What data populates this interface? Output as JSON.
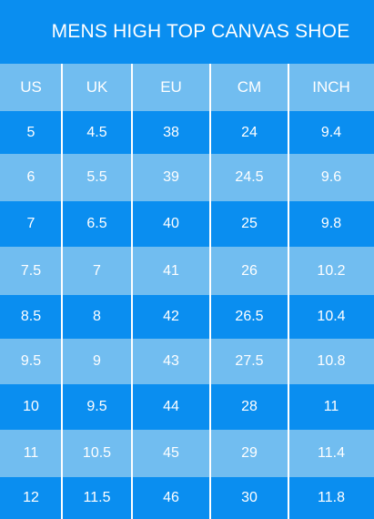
{
  "title": "MENS HIGH TOP CANVAS SHOE",
  "colors": {
    "background_blue": "#0a8ef0",
    "light_row": "#71bdf0",
    "text": "#ffffff",
    "divider": "#ffffff"
  },
  "table": {
    "headers": [
      "US",
      "UK",
      "EU",
      "CM",
      "INCH"
    ],
    "rows": [
      [
        "5",
        "4.5",
        "38",
        "24",
        "9.4"
      ],
      [
        "6",
        "5.5",
        "39",
        "24.5",
        "9.6"
      ],
      [
        "7",
        "6.5",
        "40",
        "25",
        "9.8"
      ],
      [
        "7.5",
        "7",
        "41",
        "26",
        "10.2"
      ],
      [
        "8.5",
        "8",
        "42",
        "26.5",
        "10.4"
      ],
      [
        "9.5",
        "9",
        "43",
        "27.5",
        "10.8"
      ],
      [
        "10",
        "9.5",
        "44",
        "28",
        "11"
      ],
      [
        "11",
        "10.5",
        "45",
        "29",
        "11.4"
      ],
      [
        "12",
        "11.5",
        "46",
        "30",
        "11.8"
      ]
    ]
  }
}
